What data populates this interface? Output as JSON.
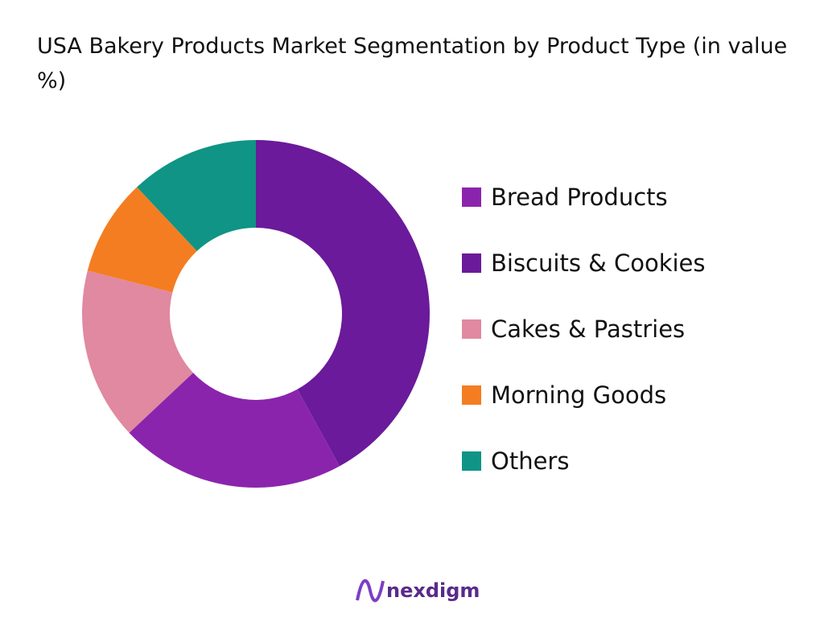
{
  "chart_data": {
    "type": "donut",
    "title": "USA Bakery Products Market Segmentation by Product Type (in value %)",
    "categories": [
      "Bread Products",
      "Biscuits & Cookies",
      "Cakes & Pastries",
      "Morning Goods",
      "Others"
    ],
    "values": [
      21,
      42,
      16,
      9,
      12
    ],
    "colors": [
      "#8b24ad",
      "#6a1a9a",
      "#e089a1",
      "#f47d22",
      "#0f9485"
    ],
    "legend": "right"
  },
  "brand": "nexdigm"
}
